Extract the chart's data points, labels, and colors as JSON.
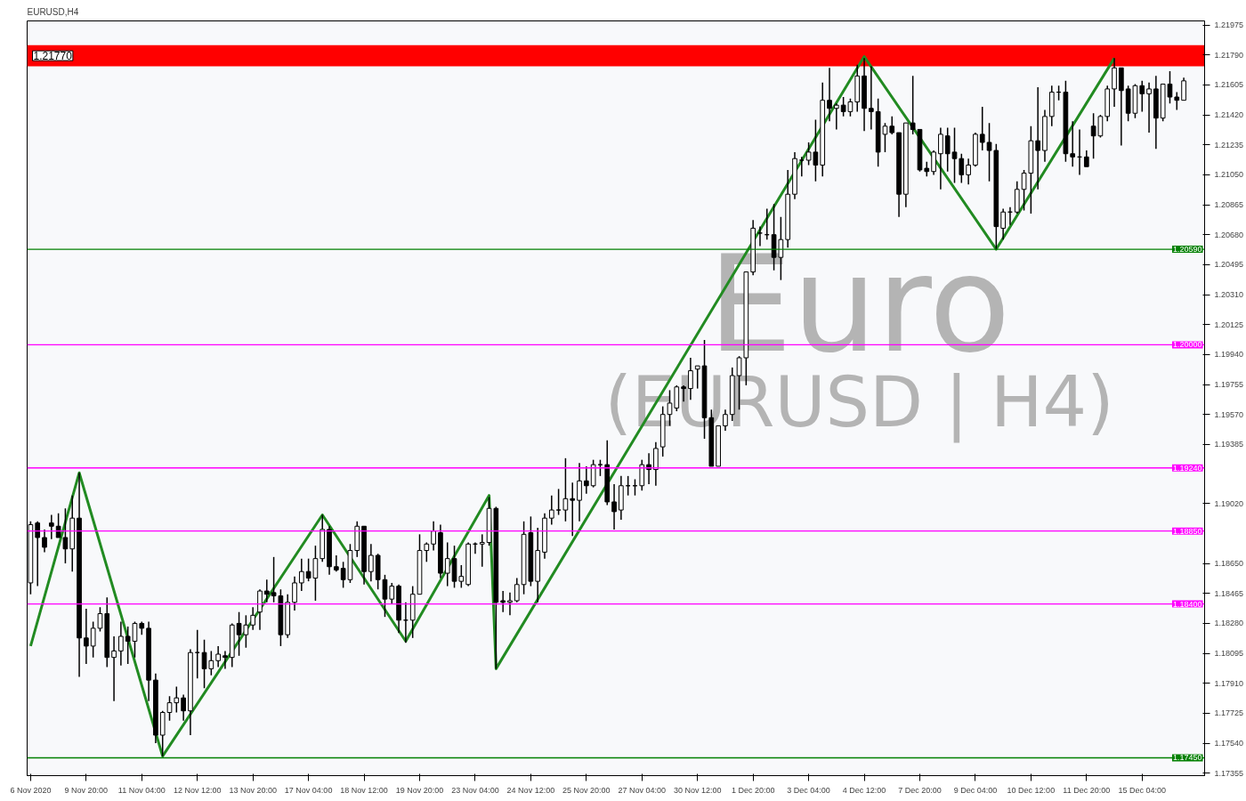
{
  "chart_data": {
    "type": "candlestick",
    "title": "EURUSD,H4",
    "annotations": [
      "Euro",
      "(EURUSD | H4)"
    ],
    "categories": [
      "6 Nov 2020",
      null,
      null,
      null,
      null,
      null,
      null,
      null,
      "9 Nov 20:00",
      null,
      null,
      null,
      null,
      null,
      null,
      null,
      "11 Nov 04:00",
      null,
      null,
      null,
      null,
      null,
      null,
      null,
      "12 Nov 12:00",
      null,
      null,
      null,
      null,
      null,
      null,
      null,
      "13 Nov 20:00",
      null,
      null,
      null,
      null,
      null,
      null,
      null,
      "17 Nov 04:00",
      null,
      null,
      null,
      null,
      null,
      null,
      null,
      "18 Nov 12:00",
      null,
      null,
      null,
      null,
      null,
      null,
      null,
      "19 Nov 20:00",
      null,
      null,
      null,
      null,
      null,
      null,
      null,
      "23 Nov 04:00",
      null,
      null,
      null,
      null,
      null,
      null,
      null,
      "24 Nov 12:00",
      null,
      null,
      null,
      null,
      null,
      null,
      null,
      "25 Nov 20:00",
      null,
      null,
      null,
      null,
      null,
      null,
      null,
      "27 Nov 04:00",
      null,
      null,
      null,
      null,
      null,
      null,
      null,
      "30 Nov 12:00",
      null,
      null,
      null,
      null,
      null,
      null,
      null,
      "1 Dec 20:00",
      null,
      null,
      null,
      null,
      null,
      null,
      null,
      "3 Dec 04:00",
      null,
      null,
      null,
      null,
      null,
      null,
      null,
      "4 Dec 12:00",
      null,
      null,
      null,
      null,
      null,
      null,
      null,
      "7 Dec 20:00",
      null,
      null,
      null,
      null,
      null,
      null,
      null,
      "9 Dec 04:00",
      null,
      null,
      null,
      null,
      null,
      null,
      null,
      "10 Dec 12:00",
      null,
      null,
      null,
      null,
      null,
      null,
      null,
      "11 Dec 20:00",
      null,
      null,
      null,
      null,
      null,
      null,
      null,
      "15 Dec 04:00",
      null,
      null,
      null,
      null,
      null,
      null
    ],
    "ohlc": [
      [
        1.1853,
        1.1891,
        1.1846,
        1.1889
      ],
      [
        1.189,
        1.1891,
        1.1851,
        1.1881
      ],
      [
        1.1881,
        1.1886,
        1.1872,
        1.1875
      ],
      [
        1.189,
        1.1895,
        1.188,
        1.1888
      ],
      [
        1.1888,
        1.1896,
        1.1881,
        1.1881
      ],
      [
        1.1881,
        1.1899,
        1.1865,
        1.1874
      ],
      [
        1.1874,
        1.1907,
        1.186,
        1.1893
      ],
      [
        1.1893,
        1.1921,
        1.1795,
        1.1819
      ],
      [
        1.1819,
        1.1837,
        1.1803,
        1.1814
      ],
      [
        1.1814,
        1.1829,
        1.1807,
        1.1825
      ],
      [
        1.1825,
        1.1838,
        1.1823,
        1.1834
      ],
      [
        1.1834,
        1.1844,
        1.1801,
        1.1807
      ],
      [
        1.1807,
        1.182,
        1.178,
        1.1811
      ],
      [
        1.1811,
        1.1829,
        1.1802,
        1.182
      ],
      [
        1.182,
        1.1826,
        1.1803,
        1.1817
      ],
      [
        1.1817,
        1.1829,
        1.1807,
        1.1828
      ],
      [
        1.1828,
        1.1829,
        1.1821,
        1.1825
      ],
      [
        1.1825,
        1.1829,
        1.178,
        1.1793
      ],
      [
        1.1793,
        1.1797,
        1.1754,
        1.1759
      ],
      [
        1.1759,
        1.1774,
        1.1746,
        1.1773
      ],
      [
        1.1773,
        1.1783,
        1.1768,
        1.1779
      ],
      [
        1.1779,
        1.1789,
        1.1773,
        1.1782
      ],
      [
        1.1782,
        1.1784,
        1.1768,
        1.1774
      ],
      [
        1.1774,
        1.1812,
        1.1759,
        1.181
      ],
      [
        1.181,
        1.1824,
        1.1794,
        1.181
      ],
      [
        1.181,
        1.1818,
        1.1788,
        1.18
      ],
      [
        1.18,
        1.1811,
        1.1796,
        1.1805
      ],
      [
        1.1805,
        1.1814,
        1.1801,
        1.1809
      ],
      [
        1.1808,
        1.1811,
        1.18,
        1.1807
      ],
      [
        1.1807,
        1.1828,
        1.1801,
        1.1827
      ],
      [
        1.1828,
        1.1835,
        1.1808,
        1.1821
      ],
      [
        1.1821,
        1.1833,
        1.1813,
        1.1827
      ],
      [
        1.1827,
        1.1838,
        1.1824,
        1.1833
      ],
      [
        1.1835,
        1.1849,
        1.1824,
        1.1848
      ],
      [
        1.1848,
        1.1855,
        1.1841,
        1.1846
      ],
      [
        1.1847,
        1.1869,
        1.1841,
        1.1845
      ],
      [
        1.1845,
        1.1849,
        1.1814,
        1.1821
      ],
      [
        1.1821,
        1.1846,
        1.1819,
        1.1841
      ],
      [
        1.1841,
        1.1857,
        1.1836,
        1.1853
      ],
      [
        1.1853,
        1.1868,
        1.1848,
        1.186
      ],
      [
        1.186,
        1.1868,
        1.1854,
        1.1856
      ],
      [
        1.1856,
        1.1876,
        1.1842,
        1.1868
      ],
      [
        1.1868,
        1.1895,
        1.1866,
        1.1886
      ],
      [
        1.1886,
        1.1888,
        1.1858,
        1.1863
      ],
      [
        1.1863,
        1.187,
        1.186,
        1.1861
      ],
      [
        1.1862,
        1.1866,
        1.185,
        1.1855
      ],
      [
        1.1855,
        1.1877,
        1.1853,
        1.1873
      ],
      [
        1.1873,
        1.1891,
        1.1869,
        1.1888
      ],
      [
        1.1888,
        1.1888,
        1.1852,
        1.186
      ],
      [
        1.186,
        1.1877,
        1.1854,
        1.187
      ],
      [
        1.187,
        1.1871,
        1.1849,
        1.1855
      ],
      [
        1.1855,
        1.1858,
        1.1832,
        1.1843
      ],
      [
        1.1843,
        1.1853,
        1.184,
        1.1851
      ],
      [
        1.1851,
        1.1852,
        1.1822,
        1.183
      ],
      [
        1.183,
        1.1841,
        1.1816,
        1.183
      ],
      [
        1.183,
        1.1851,
        1.1819,
        1.1846
      ],
      [
        1.1846,
        1.1883,
        1.1846,
        1.1873
      ],
      [
        1.1873,
        1.1878,
        1.1866,
        1.1877
      ],
      [
        1.1877,
        1.1891,
        1.1873,
        1.1885
      ],
      [
        1.1884,
        1.1889,
        1.1856,
        1.1859
      ],
      [
        1.1859,
        1.1878,
        1.1851,
        1.1868
      ],
      [
        1.1868,
        1.1876,
        1.185,
        1.1854
      ],
      [
        1.1854,
        1.1864,
        1.185,
        1.1857
      ],
      [
        1.1852,
        1.1878,
        1.1851,
        1.1877
      ],
      [
        1.1877,
        1.1878,
        1.1871,
        1.1877
      ],
      [
        1.1877,
        1.1883,
        1.1863,
        1.1878
      ],
      [
        1.1878,
        1.1906,
        1.1876,
        1.1899
      ],
      [
        1.1899,
        1.19,
        1.18,
        1.1841
      ],
      [
        1.1842,
        1.1848,
        1.1835,
        1.1841
      ],
      [
        1.1841,
        1.1847,
        1.1833,
        1.1842
      ],
      [
        1.1842,
        1.1856,
        1.1841,
        1.1852
      ],
      [
        1.1852,
        1.1891,
        1.1846,
        1.1883
      ],
      [
        1.1884,
        1.1894,
        1.1851,
        1.1854
      ],
      [
        1.1854,
        1.1887,
        1.1841,
        1.1873
      ],
      [
        1.1872,
        1.1896,
        1.1868,
        1.1893
      ],
      [
        1.1893,
        1.1907,
        1.1889,
        1.1898
      ],
      [
        1.1898,
        1.1911,
        1.1895,
        1.1898
      ],
      [
        1.1898,
        1.193,
        1.1891,
        1.1905
      ],
      [
        1.1905,
        1.1915,
        1.1882,
        1.1904
      ],
      [
        1.1904,
        1.1927,
        1.1891,
        1.1916
      ],
      [
        1.1916,
        1.1925,
        1.1908,
        1.1913
      ],
      [
        1.1913,
        1.1929,
        1.1912,
        1.1926
      ],
      [
        1.1926,
        1.1929,
        1.1919,
        1.1926
      ],
      [
        1.1926,
        1.1941,
        1.1901,
        1.1903
      ],
      [
        1.1903,
        1.1914,
        1.1886,
        1.1897
      ],
      [
        1.1898,
        1.1919,
        1.1892,
        1.1913
      ],
      [
        1.1913,
        1.1919,
        1.1907,
        1.1913
      ],
      [
        1.1913,
        1.1917,
        1.1907,
        1.1913
      ],
      [
        1.1913,
        1.1929,
        1.191,
        1.1926
      ],
      [
        1.1926,
        1.1933,
        1.1914,
        1.1923
      ],
      [
        1.1923,
        1.194,
        1.1913,
        1.1936
      ],
      [
        1.1937,
        1.1962,
        1.1931,
        1.1957
      ],
      [
        1.1957,
        1.1972,
        1.195,
        1.1964
      ],
      [
        1.1961,
        1.1975,
        1.1959,
        1.1974
      ],
      [
        1.1974,
        1.1975,
        1.1965,
        1.1973
      ],
      [
        1.1973,
        1.1992,
        1.1966,
        1.1984
      ],
      [
        1.1985,
        1.1987,
        1.1973,
        1.1987
      ],
      [
        1.1987,
        1.2003,
        1.1942,
        1.1955
      ],
      [
        1.1955,
        1.196,
        1.1925,
        1.1925
      ],
      [
        1.1925,
        1.195,
        1.1925,
        1.195
      ],
      [
        1.195,
        1.196,
        1.1947,
        1.1957
      ],
      [
        1.1957,
        1.1986,
        1.1953,
        1.1981
      ],
      [
        1.1981,
        1.1993,
        1.196,
        1.1992
      ],
      [
        1.1992,
        1.2045,
        1.1975,
        1.2045
      ],
      [
        1.2045,
        1.2077,
        1.2043,
        1.2072
      ],
      [
        1.2069,
        1.2073,
        1.2061,
        1.2069
      ],
      [
        1.2068,
        1.2084,
        1.2065,
        1.2068
      ],
      [
        1.2068,
        1.2087,
        1.2046,
        1.2054
      ],
      [
        1.2054,
        1.2079,
        1.204,
        1.2065
      ],
      [
        1.2065,
        1.2108,
        1.206,
        1.2093
      ],
      [
        1.2093,
        1.2119,
        1.209,
        1.2115
      ],
      [
        1.2114,
        1.2116,
        1.2104,
        1.2114
      ],
      [
        1.2114,
        1.2125,
        1.2111,
        1.2119
      ],
      [
        1.2119,
        1.2139,
        1.2101,
        1.2111
      ],
      [
        1.2111,
        1.2162,
        1.2104,
        1.2151
      ],
      [
        1.2151,
        1.2171,
        1.2138,
        1.2146
      ],
      [
        1.2146,
        1.2149,
        1.2133,
        1.2148
      ],
      [
        1.2148,
        1.2153,
        1.2141,
        1.2144
      ],
      [
        1.2144,
        1.2152,
        1.2141,
        1.215
      ],
      [
        1.215,
        1.2173,
        1.2144,
        1.2166
      ],
      [
        1.2166,
        1.2177,
        1.2132,
        1.2146
      ],
      [
        1.2146,
        1.2172,
        1.2133,
        1.2144
      ],
      [
        1.2144,
        1.2152,
        1.211,
        1.2119
      ],
      [
        1.213,
        1.2137,
        1.2119,
        1.2135
      ],
      [
        1.2135,
        1.2141,
        1.213,
        1.2131
      ],
      [
        1.2131,
        1.2131,
        1.2079,
        1.2093
      ],
      [
        1.2093,
        1.2137,
        1.2085,
        1.2137
      ],
      [
        1.2137,
        1.2166,
        1.213,
        1.2133
      ],
      [
        1.2133,
        1.2133,
        1.2107,
        1.2108
      ],
      [
        1.2109,
        1.2113,
        1.2104,
        1.2107
      ],
      [
        1.2107,
        1.212,
        1.2105,
        1.2119
      ],
      [
        1.2118,
        1.2134,
        1.2096,
        1.213
      ],
      [
        1.2129,
        1.2134,
        1.2107,
        1.2118
      ],
      [
        1.2119,
        1.2134,
        1.21,
        1.2115
      ],
      [
        1.2115,
        1.2118,
        1.21,
        1.2105
      ],
      [
        1.2105,
        1.2115,
        1.2099,
        1.2111
      ],
      [
        1.2111,
        1.2131,
        1.211,
        1.213
      ],
      [
        1.213,
        1.2147,
        1.212,
        1.2125
      ],
      [
        1.2125,
        1.2137,
        1.2101,
        1.212
      ],
      [
        1.212,
        1.2124,
        1.2059,
        1.2073
      ],
      [
        1.2072,
        1.2084,
        1.2065,
        1.2082
      ],
      [
        1.2082,
        1.2085,
        1.2074,
        1.2082
      ],
      [
        1.2082,
        1.2101,
        1.2081,
        1.2096
      ],
      [
        1.2096,
        1.2108,
        1.2083,
        1.2106
      ],
      [
        1.2106,
        1.2135,
        1.2081,
        1.2126
      ],
      [
        1.2126,
        1.2159,
        1.2096,
        1.212
      ],
      [
        1.212,
        1.2145,
        1.2113,
        1.2141
      ],
      [
        1.2141,
        1.216,
        1.2135,
        1.2156
      ],
      [
        1.2156,
        1.216,
        1.2151,
        1.2156
      ],
      [
        1.2156,
        1.2163,
        1.2113,
        1.2118
      ],
      [
        1.2118,
        1.2138,
        1.211,
        1.2116
      ],
      [
        1.2116,
        1.2133,
        1.2105,
        1.2116
      ],
      [
        1.2116,
        1.212,
        1.211,
        1.211
      ],
      [
        1.2135,
        1.2143,
        1.2115,
        1.2129
      ],
      [
        1.2129,
        1.2142,
        1.2128,
        1.2141
      ],
      [
        1.2141,
        1.216,
        1.2138,
        1.2158
      ],
      [
        1.2158,
        1.2177,
        1.2147,
        1.2171
      ],
      [
        1.2171,
        1.2171,
        1.2123,
        1.2157
      ],
      [
        1.2158,
        1.216,
        1.2138,
        1.2143
      ],
      [
        1.2143,
        1.2161,
        1.214,
        1.216
      ],
      [
        1.216,
        1.2163,
        1.2144,
        1.2155
      ],
      [
        1.2155,
        1.2162,
        1.2131,
        1.2158
      ],
      [
        1.2158,
        1.2166,
        1.2121,
        1.214
      ],
      [
        1.214,
        1.2161,
        1.2138,
        1.2161
      ],
      [
        1.2161,
        1.2169,
        1.2149,
        1.2153
      ],
      [
        1.2153,
        1.2156,
        1.2145,
        1.2151
      ],
      [
        1.2151,
        1.2165,
        1.2151,
        1.2163
      ]
    ],
    "series": [
      {
        "type": "line",
        "color": "#228b22",
        "values": [
          1.1814,
          null,
          null,
          null,
          null,
          null,
          null,
          1.1921,
          null,
          null,
          null,
          null,
          null,
          null,
          null,
          null,
          null,
          null,
          null,
          1.1746,
          null,
          null,
          null,
          null,
          null,
          null,
          null,
          null,
          null,
          null,
          null,
          null,
          null,
          null,
          null,
          null,
          null,
          null,
          null,
          null,
          null,
          null,
          1.1895,
          null,
          null,
          null,
          null,
          null,
          null,
          null,
          null,
          null,
          null,
          null,
          1.1817,
          null,
          null,
          null,
          null,
          null,
          null,
          null,
          null,
          null,
          null,
          null,
          1.1907,
          1.18,
          null,
          null,
          null,
          null,
          null,
          null,
          null,
          null,
          null,
          null,
          null,
          null,
          null,
          null,
          null,
          null,
          null,
          null,
          null,
          null,
          null,
          null,
          null,
          null,
          null,
          null,
          null,
          null,
          null,
          null,
          null,
          null,
          null,
          null,
          null,
          null,
          null,
          null,
          null,
          null,
          null,
          null,
          null,
          null,
          null,
          null,
          null,
          null,
          null,
          null,
          null,
          null,
          1.2178,
          null,
          null,
          null,
          null,
          null,
          null,
          null,
          null,
          null,
          null,
          null,
          null,
          null,
          null,
          null,
          null,
          null,
          null,
          1.2059,
          null,
          null,
          null,
          null,
          null,
          null,
          null,
          null,
          null,
          null,
          null,
          null,
          null,
          null,
          null,
          null,
          1.2177,
          null,
          null,
          null,
          null,
          null,
          null,
          null,
          null,
          null,
          null
        ]
      }
    ],
    "ylim": [
      1.1734,
      1.22
    ],
    "yticks": [
      {
        "value": 1.21975,
        "label": "1.21975"
      },
      {
        "value": 1.2179,
        "label": "1.21790"
      },
      {
        "value": 1.21605,
        "label": "1.21605"
      },
      {
        "value": 1.2142,
        "label": "1.21420"
      },
      {
        "value": 1.21235,
        "label": "1.21235"
      },
      {
        "value": 1.2105,
        "label": "1.21050"
      },
      {
        "value": 1.20865,
        "label": "1.20865"
      },
      {
        "value": 1.2068,
        "label": "1.20680"
      },
      {
        "value": 1.20495,
        "label": "1.20495"
      },
      {
        "value": 1.2031,
        "label": "1.20310"
      },
      {
        "value": 1.20125,
        "label": "1.20125"
      },
      {
        "value": 1.1994,
        "label": "1.19940"
      },
      {
        "value": 1.19755,
        "label": "1.19755"
      },
      {
        "value": 1.1957,
        "label": "1.19570"
      },
      {
        "value": 1.19385,
        "label": "1.19385"
      },
      {
        "value": 1.1902,
        "label": "1.19020"
      },
      {
        "value": 1.1865,
        "label": "1.18650"
      },
      {
        "value": 1.18465,
        "label": "1.18465"
      },
      {
        "value": 1.1828,
        "label": "1.18280"
      },
      {
        "value": 1.18095,
        "label": "1.18095"
      },
      {
        "value": 1.1791,
        "label": "1.17910"
      },
      {
        "value": 1.17725,
        "label": "1.17725"
      },
      {
        "value": 1.1754,
        "label": "1.17540"
      },
      {
        "value": 1.17355,
        "label": "1.17355"
      }
    ],
    "ref_lines": [
      {
        "axis": "y",
        "value": 1.2059,
        "label": "1.20590",
        "color": "#008000"
      },
      {
        "axis": "y",
        "value": 1.2,
        "label": "1.20000",
        "color": "#ff00ff"
      },
      {
        "axis": "y",
        "value": 1.1924,
        "label": "1.19240",
        "color": "#ff00ff"
      },
      {
        "axis": "y",
        "value": 1.1885,
        "label": "1.18850",
        "color": "#ff00ff"
      },
      {
        "axis": "y",
        "value": 1.184,
        "label": "1.18400",
        "color": "#ff00ff"
      },
      {
        "axis": "y",
        "value": 1.1745,
        "label": "1.17450",
        "color": "#008000"
      }
    ],
    "bands": [
      {
        "axis": "y",
        "from": 1.2172,
        "to": 1.2185,
        "label": "1.21770",
        "color": "#ff0000"
      }
    ]
  }
}
